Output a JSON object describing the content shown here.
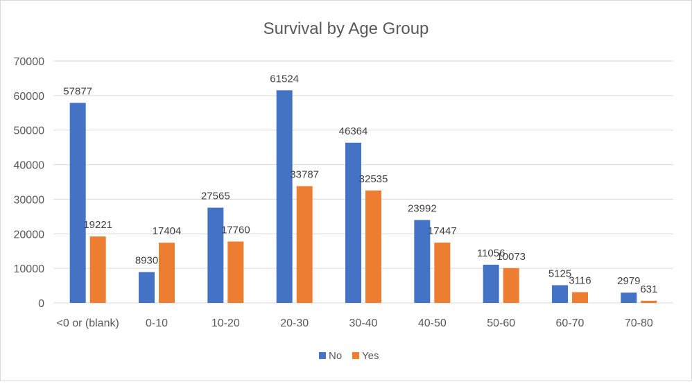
{
  "chart_data": {
    "type": "bar",
    "title": "Survival by Age Group",
    "xlabel": "",
    "ylabel": "",
    "categories": [
      "<0 or (blank)",
      "0-10",
      "10-20",
      "20-30",
      "30-40",
      "40-50",
      "50-60",
      "60-70",
      "70-80"
    ],
    "series": [
      {
        "name": "No",
        "color": "#4472C4",
        "values": [
          57877,
          8930,
          27565,
          61524,
          46364,
          23992,
          11056,
          5125,
          2979
        ]
      },
      {
        "name": "Yes",
        "color": "#ED7D31",
        "values": [
          19221,
          17404,
          17760,
          33787,
          32535,
          17447,
          10073,
          3116,
          631
        ]
      }
    ],
    "ylim": [
      0,
      70000
    ],
    "yticks": [
      0,
      10000,
      20000,
      30000,
      40000,
      50000,
      60000,
      70000
    ],
    "grid": true,
    "legend_position": "bottom",
    "data_labels": true
  }
}
